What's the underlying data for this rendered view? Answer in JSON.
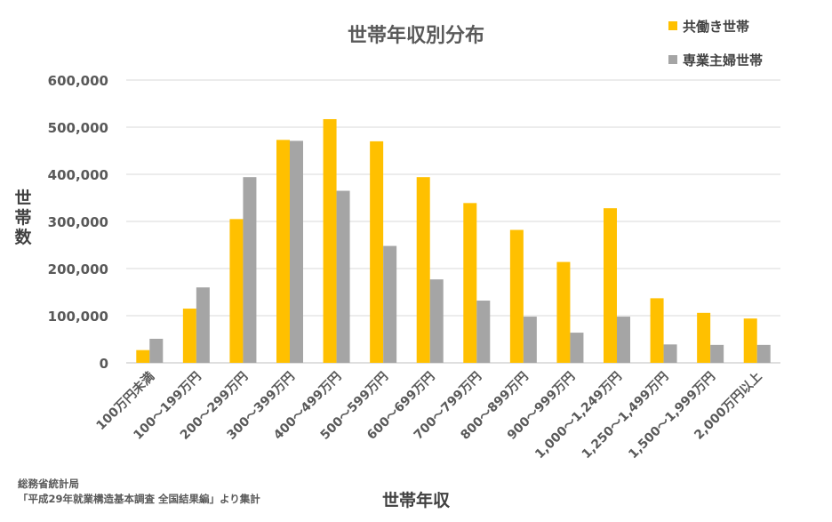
{
  "chart_data": {
    "type": "bar",
    "title": "世帯年収別分布",
    "xlabel": "世帯年収",
    "ylabel": "世帯数",
    "ylim": [
      0,
      600000
    ],
    "yticks": [
      "0",
      "100,000",
      "200,000",
      "300,000",
      "400,000",
      "500,000",
      "600,000"
    ],
    "grid": true,
    "legend_position": "top-right",
    "categories": [
      "100万円未満",
      "100～199万円",
      "200～299万円",
      "300～399万円",
      "400～499万円",
      "500～599万円",
      "600～699万円",
      "700～799万円",
      "800～899万円",
      "900～999万円",
      "1,000～1,249万円",
      "1,250～1,499万円",
      "1,500～1,999万円",
      "2,000万円以上"
    ],
    "series": [
      {
        "name": "共働き世帯",
        "color": "#FFC000",
        "values": [
          27000,
          115000,
          305000,
          473000,
          517000,
          470000,
          394000,
          339000,
          282000,
          214000,
          328000,
          137000,
          106000,
          94000
        ]
      },
      {
        "name": "専業主婦世帯",
        "color": "#A5A5A5",
        "values": [
          51000,
          160000,
          394000,
          471000,
          365000,
          248000,
          177000,
          132000,
          98000,
          64000,
          98000,
          39000,
          38000,
          38000
        ]
      }
    ]
  },
  "source": {
    "line1": "総務省統計局",
    "line2": "「平成29年就業構造基本調査 全国結果編」より集計"
  },
  "colors": {
    "grid": "#D9D9D9",
    "axis": "#BFBFBF",
    "text": "#595959"
  }
}
